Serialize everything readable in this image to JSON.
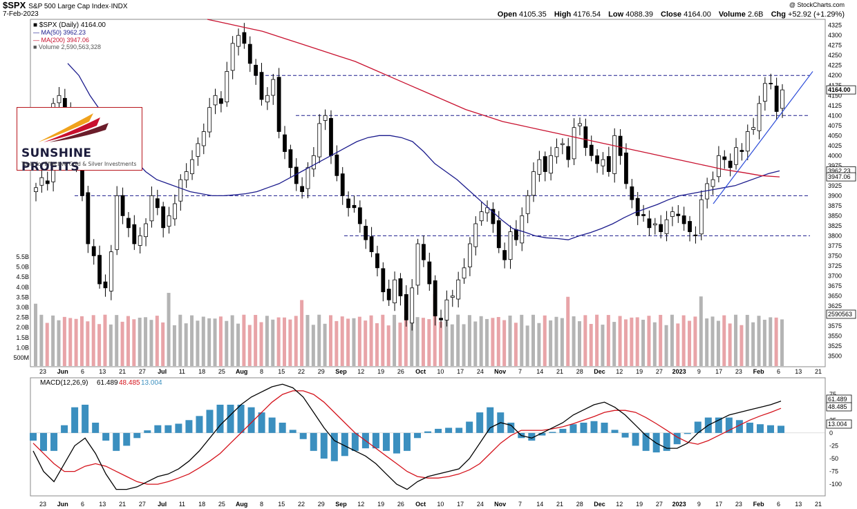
{
  "header": {
    "symbol": "$SPX",
    "index_name": "S&P 500 Large Cap Index·INDX",
    "date": "7-Feb-2023",
    "copyright": "@ StockCharts.com",
    "open_label": "Open",
    "open": "4105.35",
    "high_label": "High",
    "high": "4176.54",
    "low_label": "Low",
    "low": "4088.39",
    "close_label": "Close",
    "close": "4164.00",
    "volume_label": "Volume",
    "volume": "2.6B",
    "chg_label": "Chg",
    "chg": "+52.92 (+1.29%)"
  },
  "legend": {
    "price": "■ $SPX (Daily) 4164.00",
    "ma50": "— MA(50) 3962.23",
    "ma200": "— MA(200) 3947.06",
    "volume": "■ Volume 2,590,563,328"
  },
  "logo": {
    "name": "SUNSHINE PROFITS",
    "tagline": "Tools for Effective Gold & Silver Investments"
  },
  "macd_legend": {
    "label": "MACD(12,26,9)",
    "macd": "61.489",
    "signal": "48.485",
    "hist": "13.004"
  },
  "colors": {
    "up": "#000000",
    "down": "#000000",
    "ma50": "#1a1a8c",
    "ma200": "#c8102e",
    "vol_up": "#b4b4b4",
    "vol_down": "#e8a4a8",
    "hist": "#3b8fbf",
    "macd": "#000000",
    "signal": "#d4111a",
    "hline": "#1a1a8c",
    "trend": "#2a4ad8"
  },
  "chart_data": [
    {
      "type": "candlestick",
      "title": "$SPX (Daily)",
      "ylim": [
        3475,
        4340
      ],
      "yticks": [
        3500,
        3525,
        3550,
        3575,
        3600,
        3625,
        3650,
        3675,
        3700,
        3725,
        3750,
        3775,
        3800,
        3825,
        3850,
        3875,
        3900,
        3925,
        3950,
        3975,
        4000,
        4025,
        4050,
        4075,
        4100,
        4125,
        4150,
        4175,
        4200,
        4225,
        4250,
        4275,
        4300,
        4325
      ],
      "volume_ticks": [
        "500M",
        "1.0B",
        "1.5B",
        "2.0B",
        "2.5B",
        "3.0B",
        "3.5B",
        "4.0B",
        "4.5B",
        "5.0B",
        "5.5B"
      ],
      "x_labels": [
        "23",
        "Jun",
        "6",
        "13",
        "21",
        "27",
        "Jul",
        "11",
        "18",
        "25",
        "Aug",
        "8",
        "15",
        "22",
        "29",
        "Sep",
        "12",
        "19",
        "26",
        "Oct",
        "10",
        "17",
        "24",
        "Nov",
        "7",
        "14",
        "21",
        "28",
        "Dec",
        "12",
        "19",
        "27",
        "2023",
        "9",
        "17",
        "23",
        "Feb",
        "6",
        "13",
        "21"
      ],
      "close_series": [
        3920,
        3945,
        3930,
        4130,
        4150,
        4110,
        4070,
        3980,
        3900,
        3780,
        3750,
        3680,
        3670,
        3760,
        3900,
        3850,
        3820,
        3780,
        3800,
        3830,
        3900,
        3870,
        3820,
        3850,
        3880,
        3940,
        3960,
        3990,
        4030,
        4060,
        4120,
        4150,
        4130,
        4210,
        4280,
        4300,
        4280,
        4230,
        4200,
        4140,
        4150,
        4190,
        4060,
        4010,
        3970,
        3930,
        3910,
        3970,
        4000,
        4080,
        4100,
        4000,
        3950,
        3900,
        3870,
        3870,
        3830,
        3790,
        3760,
        3720,
        3660,
        3640,
        3690,
        3650,
        3590,
        3670,
        3780,
        3740,
        3680,
        3600,
        3590,
        3640,
        3650,
        3690,
        3720,
        3780,
        3830,
        3860,
        3870,
        3830,
        3770,
        3740,
        3810,
        3790,
        3850,
        3900,
        3960,
        3990,
        3960,
        4000,
        4020,
        4030,
        3990,
        4070,
        4080,
        4020,
        4000,
        3980,
        3990,
        3960,
        4050,
        4000,
        3930,
        3890,
        3850,
        3850,
        3820,
        3830,
        3810,
        3840,
        3860,
        3850,
        3830,
        3810,
        3800,
        3890,
        3930,
        3940,
        4000,
        3990,
        3970,
        4020,
        4010,
        4060,
        4070,
        4130,
        4180,
        4180,
        4110,
        4164
      ],
      "ma50": [
        4230,
        4200,
        4150,
        4110,
        4070,
        4030,
        3990,
        3960,
        3940,
        3930,
        3920,
        3910,
        3905,
        3900,
        3900,
        3902,
        3905,
        3910,
        3920,
        3930,
        3945,
        3960,
        3975,
        3990,
        4005,
        4020,
        4035,
        4045,
        4050,
        4050,
        4045,
        4035,
        4010,
        3980,
        3960,
        3940,
        3915,
        3890,
        3865,
        3840,
        3818,
        3810,
        3800,
        3795,
        3793,
        3790,
        3800,
        3808,
        3818,
        3830,
        3845,
        3858,
        3868,
        3878,
        3890,
        3900,
        3905,
        3910,
        3915,
        3920,
        3925,
        3935,
        3945,
        3955,
        3962
      ],
      "ma200": [
        4340,
        4330,
        4320,
        4310,
        4295,
        4280,
        4265,
        4250,
        4235,
        4215,
        4195,
        4175,
        4155,
        4135,
        4115,
        4100,
        4085,
        4075,
        4065,
        4055,
        4045,
        4035,
        4025,
        4015,
        4005,
        3995,
        3985,
        3975,
        3965,
        3958,
        3950,
        3947
      ],
      "horizontal_levels": [
        4200,
        4100,
        3900,
        3800
      ],
      "trendline": [
        [
          "Jan 19",
          3880
        ],
        [
          "Feb 10",
          4210
        ]
      ],
      "last_price_tags": [
        "4164.00",
        "3962.23",
        "3947.06",
        "2590563"
      ]
    },
    {
      "type": "line",
      "title": "MACD(12,26,9)",
      "ylim": [
        -120,
        90
      ],
      "yticks": [
        -100,
        -75,
        -50,
        -25,
        0,
        25,
        50,
        75
      ],
      "series": [
        {
          "name": "MACD(12,26,9)",
          "values": [
            -35,
            -75,
            -95,
            -60,
            -25,
            -10,
            -40,
            -80,
            -110,
            -110,
            -105,
            -95,
            -85,
            -80,
            -70,
            -55,
            -35,
            -10,
            15,
            35,
            55,
            70,
            80,
            90,
            95,
            88,
            70,
            40,
            10,
            -15,
            -25,
            -35,
            -45,
            -60,
            -80,
            -100,
            -110,
            -95,
            -85,
            -80,
            -75,
            -70,
            -50,
            -20,
            10,
            20,
            15,
            -5,
            -10,
            0,
            10,
            20,
            35,
            45,
            55,
            60,
            50,
            35,
            15,
            -5,
            -20,
            -30,
            -30,
            -20,
            0,
            15,
            25,
            35,
            40,
            45,
            50,
            55,
            62
          ]
        },
        {
          "name": "Signal",
          "values": [
            -20,
            -40,
            -60,
            -75,
            -75,
            -65,
            -60,
            -65,
            -75,
            -85,
            -95,
            -100,
            -100,
            -95,
            -88,
            -80,
            -68,
            -55,
            -40,
            -20,
            0,
            20,
            40,
            60,
            75,
            82,
            82,
            75,
            60,
            40,
            20,
            0,
            -15,
            -30,
            -45,
            -60,
            -75,
            -85,
            -88,
            -88,
            -85,
            -80,
            -72,
            -60,
            -40,
            -20,
            -5,
            5,
            5,
            5,
            8,
            12,
            18,
            25,
            32,
            40,
            44,
            44,
            40,
            30,
            18,
            5,
            -8,
            -18,
            -22,
            -15,
            -5,
            5,
            15,
            25,
            33,
            40,
            48
          ]
        }
      ],
      "histogram_last": "13.004"
    }
  ]
}
